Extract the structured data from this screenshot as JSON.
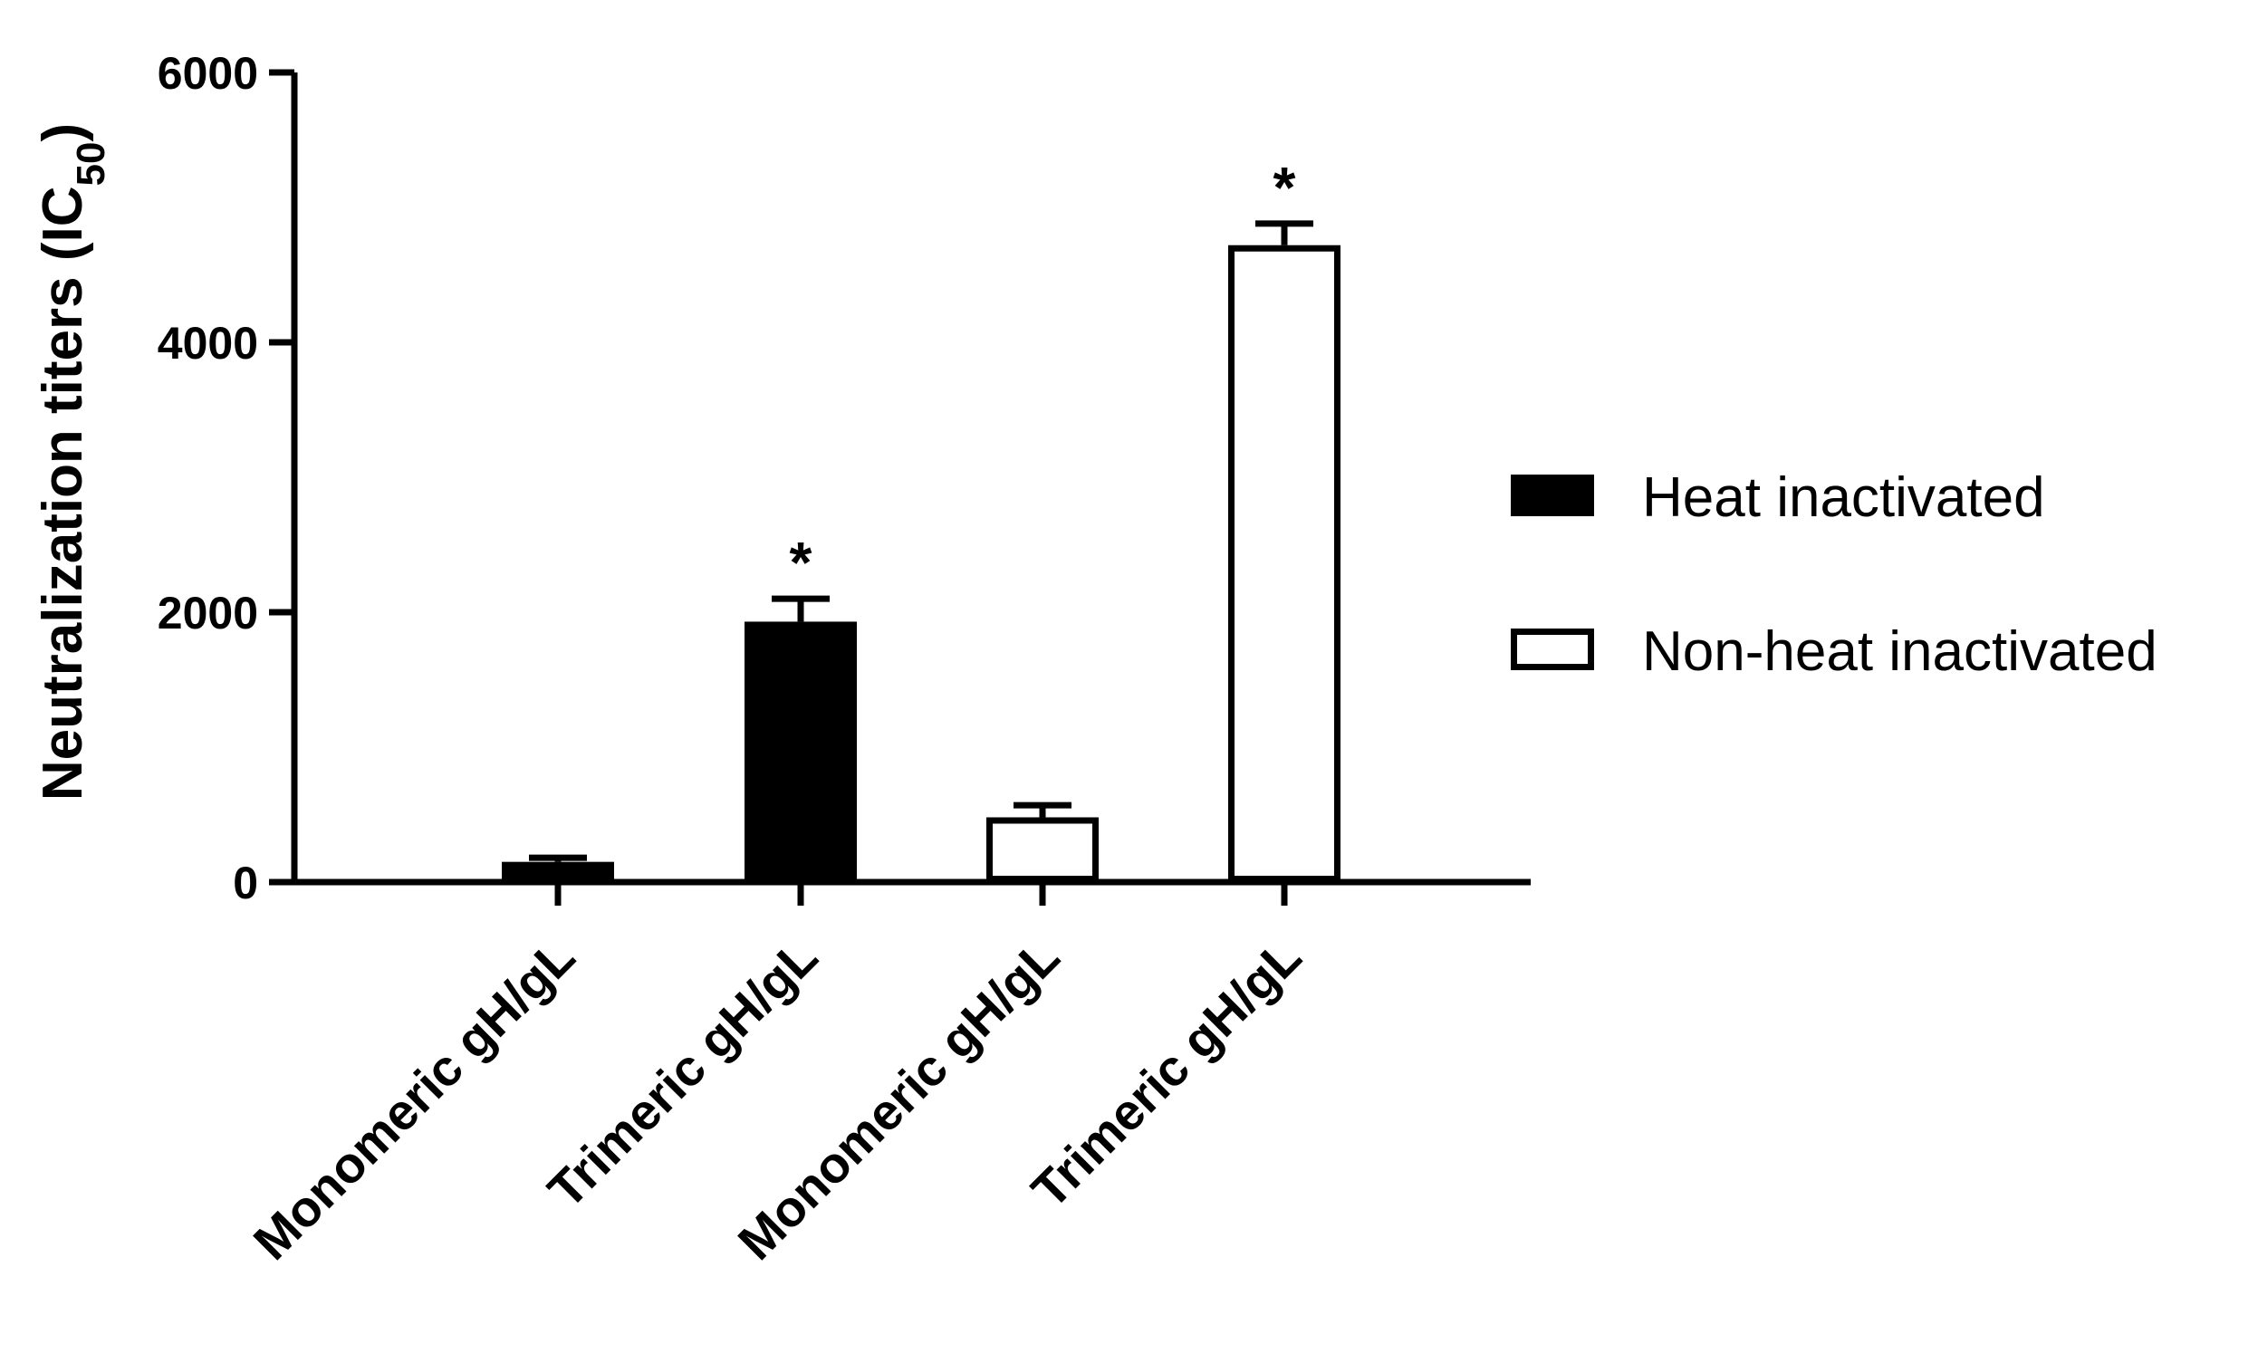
{
  "chart_data": {
    "type": "bar",
    "categories": [
      "Monomeric gH/gL",
      "Trimeric gH/gL",
      "Monomeric gH/gL",
      "Trimeric gH/gL"
    ],
    "bars": [
      {
        "category": "Monomeric gH/gL",
        "series": "Heat inactivated",
        "value": 150,
        "error": 30,
        "annotation": ""
      },
      {
        "category": "Trimeric gH/gL",
        "series": "Heat inactivated",
        "value": 1930,
        "error": 170,
        "annotation": "*"
      },
      {
        "category": "Monomeric gH/gL",
        "series": "Non-heat inactivated",
        "value": 480,
        "error": 90,
        "annotation": ""
      },
      {
        "category": "Trimeric gH/gL",
        "series": "Non-heat inactivated",
        "value": 4720,
        "error": 160,
        "annotation": "*"
      }
    ],
    "series": [
      {
        "name": "Heat inactivated",
        "style": "filled",
        "color": "#000000"
      },
      {
        "name": "Non-heat inactivated",
        "style": "open",
        "color": "#ffffff"
      }
    ],
    "ylabel": "Neutralization titers (IC",
    "ylabel_subscript": "50",
    "ylabel_suffix": ")",
    "ylim": [
      0,
      6000
    ],
    "yticks": [
      0,
      2000,
      4000,
      6000
    ],
    "grid": false,
    "legend_position": "right"
  }
}
